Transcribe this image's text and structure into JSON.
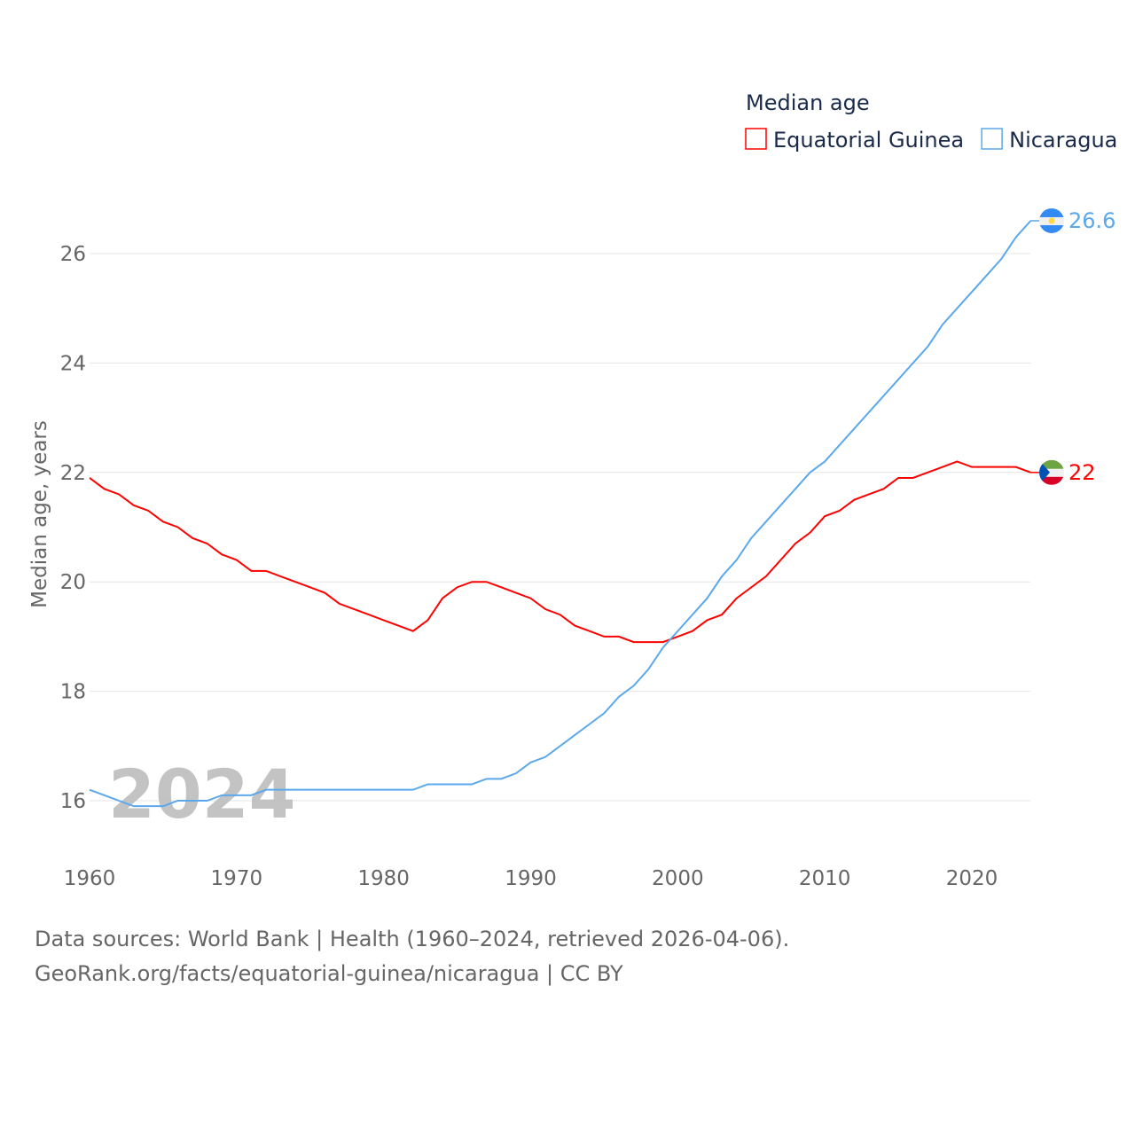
{
  "chart_data": {
    "type": "line",
    "title": "Median age",
    "ylabel": "Median age, years",
    "xlabel": "",
    "ylim": [
      15,
      26.6
    ],
    "xlim": [
      1960,
      2024
    ],
    "yticks": [
      16,
      18,
      20,
      22,
      24,
      26
    ],
    "xticks": [
      1960,
      1970,
      1980,
      1990,
      2000,
      2010,
      2020
    ],
    "grid": true,
    "legend_position": "top-right",
    "year_watermark": "2024",
    "x": [
      1960,
      1961,
      1962,
      1963,
      1964,
      1965,
      1966,
      1967,
      1968,
      1969,
      1970,
      1971,
      1972,
      1973,
      1974,
      1975,
      1976,
      1977,
      1978,
      1979,
      1980,
      1981,
      1982,
      1983,
      1984,
      1985,
      1986,
      1987,
      1988,
      1989,
      1990,
      1991,
      1992,
      1993,
      1994,
      1995,
      1996,
      1997,
      1998,
      1999,
      2000,
      2001,
      2002,
      2003,
      2004,
      2005,
      2006,
      2007,
      2008,
      2009,
      2010,
      2011,
      2012,
      2013,
      2014,
      2015,
      2016,
      2017,
      2018,
      2019,
      2020,
      2021,
      2022,
      2023,
      2024
    ],
    "series": [
      {
        "name": "Equatorial Guinea",
        "color": "#ff0000",
        "end_label": "22",
        "values": [
          21.9,
          21.7,
          21.6,
          21.4,
          21.3,
          21.1,
          21.0,
          20.8,
          20.7,
          20.5,
          20.4,
          20.2,
          20.2,
          20.1,
          20.0,
          19.9,
          19.8,
          19.6,
          19.5,
          19.4,
          19.3,
          19.2,
          19.1,
          19.3,
          19.7,
          19.9,
          20.0,
          20.0,
          19.9,
          19.8,
          19.7,
          19.5,
          19.4,
          19.2,
          19.1,
          19.0,
          19.0,
          18.9,
          18.9,
          18.9,
          19.0,
          19.1,
          19.3,
          19.4,
          19.7,
          19.9,
          20.1,
          20.4,
          20.7,
          20.9,
          21.2,
          21.3,
          21.5,
          21.6,
          21.7,
          21.9,
          21.9,
          22.0,
          22.1,
          22.2,
          22.1,
          22.1,
          22.1,
          22.1,
          22.0
        ]
      },
      {
        "name": "Nicaragua",
        "color": "#5ba8ec",
        "end_label": "26.6",
        "values": [
          16.2,
          16.1,
          16.0,
          15.9,
          15.9,
          15.9,
          16.0,
          16.0,
          16.0,
          16.1,
          16.1,
          16.1,
          16.2,
          16.2,
          16.2,
          16.2,
          16.2,
          16.2,
          16.2,
          16.2,
          16.2,
          16.2,
          16.2,
          16.3,
          16.3,
          16.3,
          16.3,
          16.4,
          16.4,
          16.5,
          16.7,
          16.8,
          17.0,
          17.2,
          17.4,
          17.6,
          17.9,
          18.1,
          18.4,
          18.8,
          19.1,
          19.4,
          19.7,
          20.1,
          20.4,
          20.8,
          21.1,
          21.4,
          21.7,
          22.0,
          22.2,
          22.5,
          22.8,
          23.1,
          23.4,
          23.7,
          24.0,
          24.3,
          24.7,
          25.0,
          25.3,
          25.6,
          25.9,
          26.3,
          26.6
        ]
      }
    ]
  },
  "sources": {
    "line1": "Data sources: World Bank | Health (1960–2024, retrieved 2026-04-06).",
    "line2": "GeoRank.org/facts/equatorial-guinea/nicaragua | CC BY"
  }
}
